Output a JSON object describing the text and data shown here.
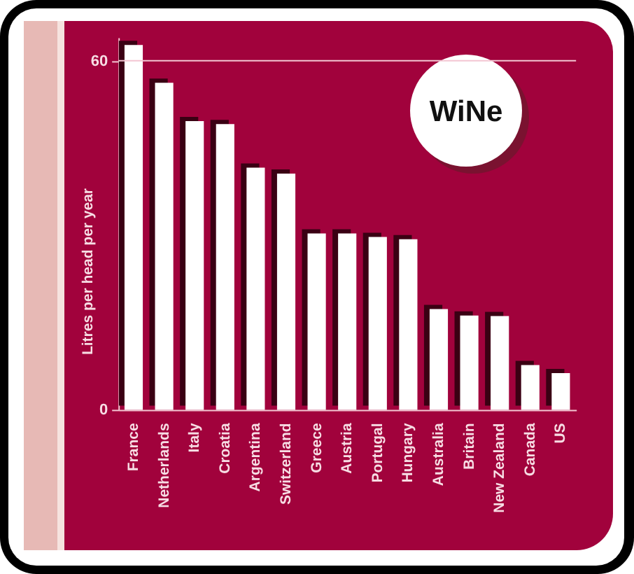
{
  "chart_data": {
    "type": "bar",
    "title": "WiNe",
    "ylabel": "Litres per head per year",
    "categories": [
      "France",
      "Netherlands",
      "Italy",
      "Croatia",
      "Argentina",
      "Switzerland",
      "Greece",
      "Austria",
      "Portugal",
      "Hungary",
      "Australia",
      "Britain",
      "New Zealand",
      "Canada",
      "US"
    ],
    "values": [
      62.7,
      56.2,
      49.6,
      49.1,
      41.6,
      40.6,
      30.3,
      30.3,
      29.7,
      29.3,
      17.3,
      16.2,
      16.1,
      7.7,
      6.3
    ],
    "color": "#ffffff",
    "ylim": [
      0,
      64
    ],
    "yticks": [
      0,
      60
    ],
    "ref_lines": [
      {
        "axis": "y",
        "value": 60,
        "color": "#f3c6d2"
      }
    ]
  }
}
